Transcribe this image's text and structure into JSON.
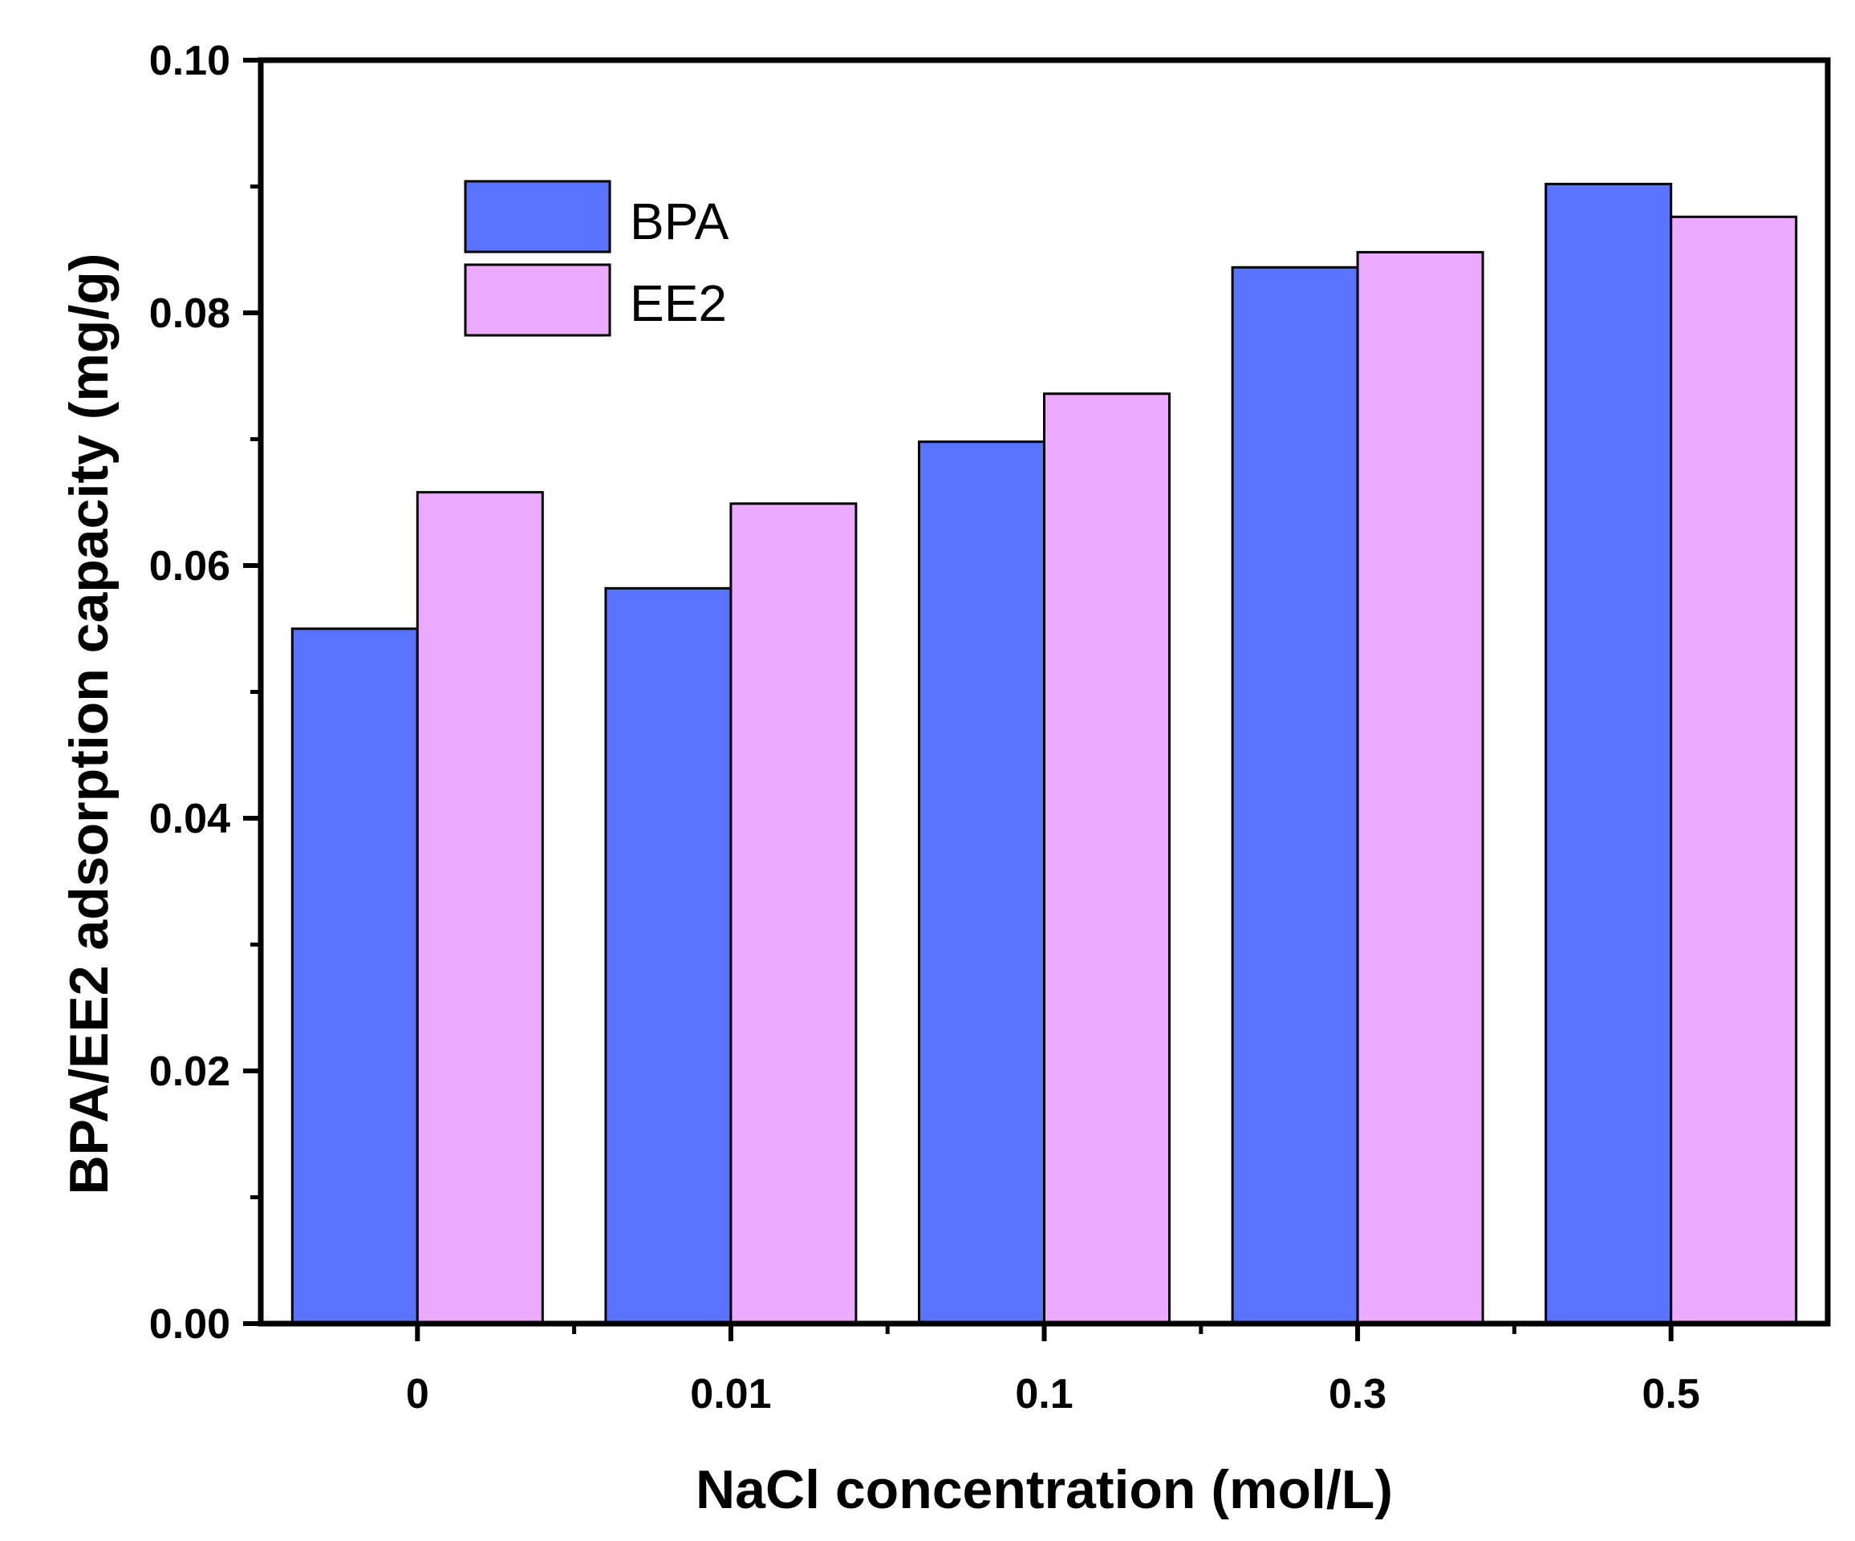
{
  "chart_data": {
    "type": "bar",
    "title": "",
    "xlabel": "NaCl concentration (mol/L)",
    "ylabel": "BPA/EE2 adsorption capacity (mg/g)",
    "categories": [
      "0",
      "0.01",
      "0.1",
      "0.3",
      "0.5"
    ],
    "series": [
      {
        "name": "BPA",
        "color": "#5a73ff",
        "values": [
          0.055,
          0.0582,
          0.0698,
          0.0836,
          0.0902
        ]
      },
      {
        "name": "EE2",
        "color": "#ebaafd",
        "values": [
          0.0658,
          0.0649,
          0.0736,
          0.0848,
          0.0876
        ]
      }
    ],
    "ylim": [
      0,
      0.1
    ],
    "yticks": [
      "0.00",
      "0.02",
      "0.04",
      "0.06",
      "0.08",
      "0.10"
    ],
    "grid": false,
    "legend_position": "top-left"
  }
}
